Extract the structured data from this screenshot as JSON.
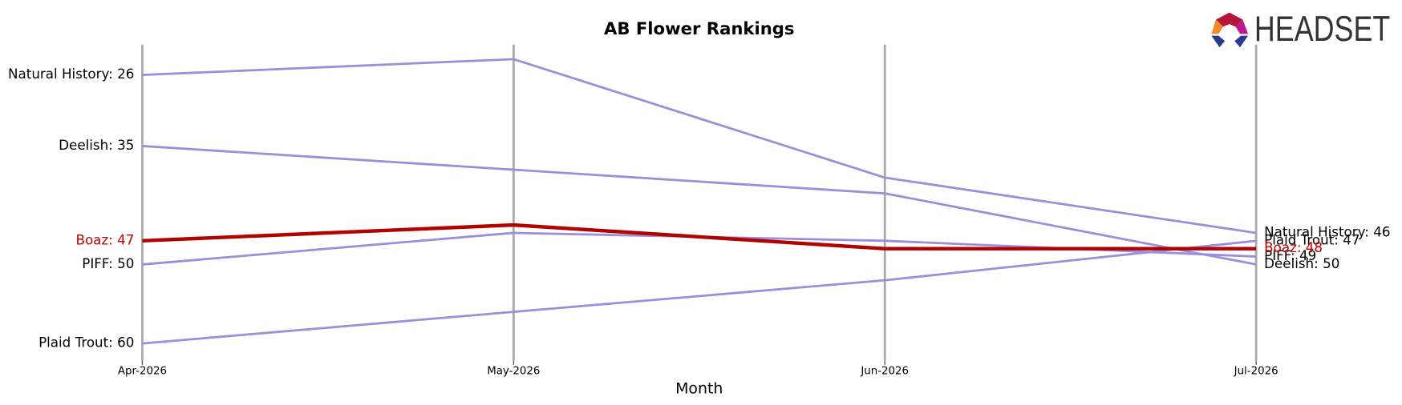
{
  "chart_data": {
    "type": "line",
    "title": "AB Flower Rankings",
    "x_label": "Month",
    "categories": [
      "Apr-2026",
      "May-2026",
      "Jun-2026",
      "Jul-2026"
    ],
    "ylim": [
      62,
      22
    ],
    "inverted_y": true,
    "series": [
      {
        "name": "Natural History",
        "color": "#9b8fdb",
        "values": [
          26,
          24,
          39,
          46
        ],
        "value_labels": [
          "Natural History: 26",
          null,
          null,
          "Natural History: 46"
        ]
      },
      {
        "name": "Deelish",
        "color": "#9b8fdb",
        "values": [
          35,
          38,
          41,
          50
        ],
        "value_labels": [
          "Deelish: 35",
          null,
          null,
          "Deelish: 50"
        ]
      },
      {
        "name": "PIFF",
        "color": "#9b8fdb",
        "values": [
          50,
          46,
          47,
          49
        ],
        "value_labels": [
          "PIFF: 50",
          null,
          null,
          "PIFF: 49"
        ]
      },
      {
        "name": "Plaid Trout",
        "color": "#9b8fdb",
        "values": [
          60,
          56,
          52,
          47
        ],
        "value_labels": [
          "Plaid Trout: 60",
          null,
          null,
          "Plaid Trout: 47"
        ]
      },
      {
        "name": "Boaz",
        "color": "#b30000",
        "label_color": "#c00000",
        "values": [
          47,
          45,
          48,
          48
        ],
        "value_labels": [
          "Boaz: 47",
          null,
          null,
          "Boaz: 48"
        ]
      }
    ]
  },
  "logo": {
    "text": "HEADSET"
  }
}
